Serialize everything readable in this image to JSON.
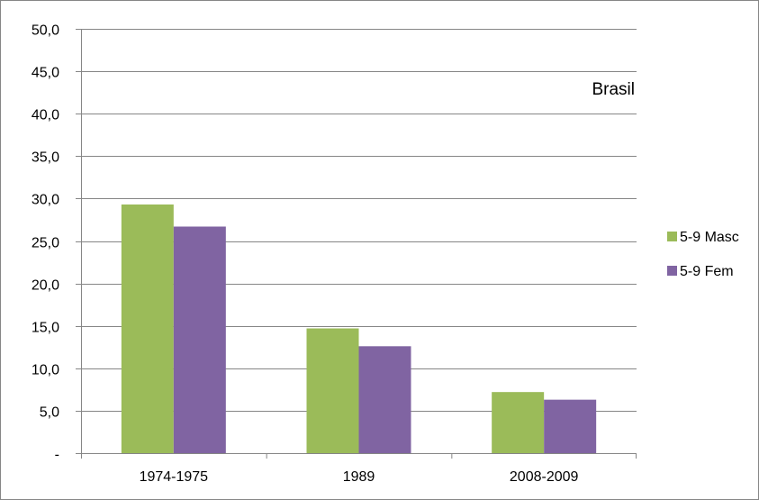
{
  "chart_data": {
    "type": "bar",
    "categories": [
      "1974-1975",
      "1989",
      "2008-2009"
    ],
    "series": [
      {
        "name": "5-9 Masc",
        "color": "#9bbb59",
        "values": [
          29.3,
          14.7,
          7.2
        ]
      },
      {
        "name": "5-9 Fem",
        "color": "#8064a2",
        "values": [
          26.7,
          12.6,
          6.3
        ]
      }
    ],
    "ylim": [
      0,
      50
    ],
    "yticks": [
      0,
      5,
      10,
      15,
      20,
      25,
      30,
      35,
      40,
      45,
      50
    ],
    "ytick_labels": [
      "-",
      "5,0",
      "10,0",
      "15,0",
      "20,0",
      "25,0",
      "30,0",
      "35,0",
      "40,0",
      "45,0",
      "50,0"
    ],
    "annotation": "Brasil",
    "grid": true,
    "legend_position": "right"
  }
}
